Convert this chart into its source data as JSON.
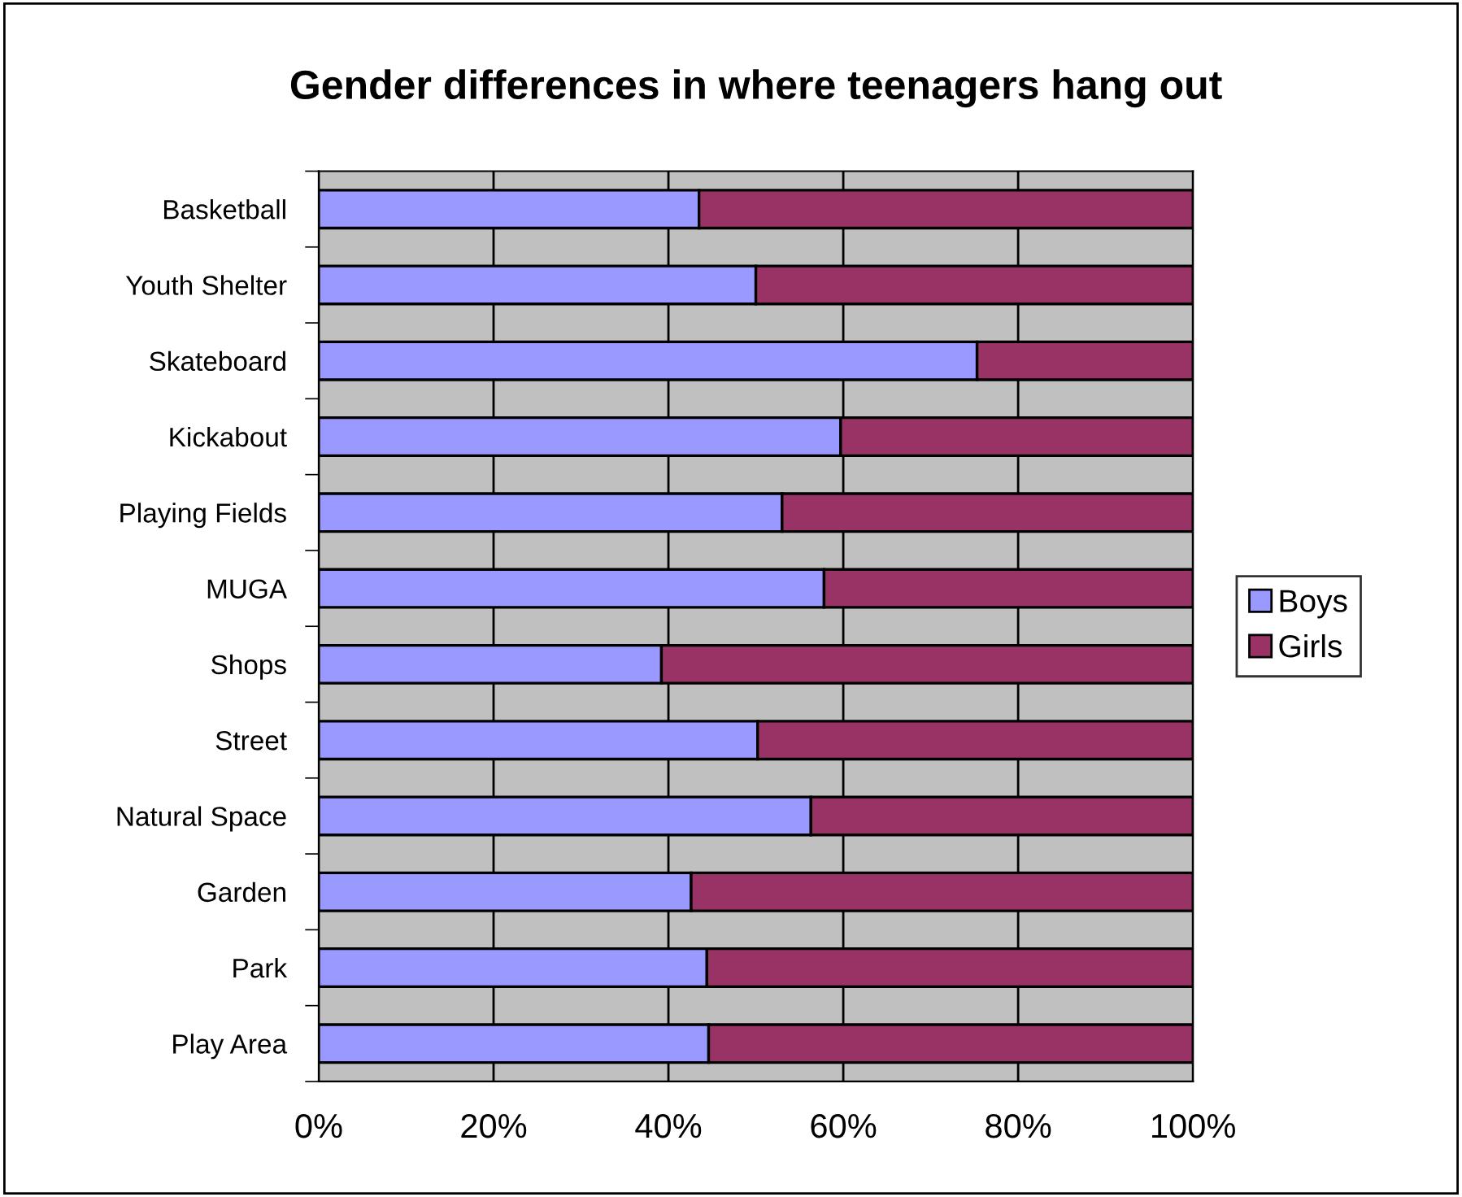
{
  "chart_data": {
    "type": "bar",
    "orientation": "horizontal",
    "stacked": true,
    "title": "Gender differences in where teenagers hang out",
    "categories": [
      "Basketball",
      "Youth Shelter",
      "Skateboard",
      "Kickabout",
      "Playing Fields",
      "MUGA",
      "Shops",
      "Street",
      "Natural Space",
      "Garden",
      "Park",
      "Play Area"
    ],
    "series": [
      {
        "name": "Boys",
        "color": "#9999ff",
        "values": [
          43.5,
          50,
          75.3,
          59.7,
          53,
          57.8,
          39.2,
          50.2,
          56.3,
          42.6,
          44.4,
          44.6
        ]
      },
      {
        "name": "Girls",
        "color": "#993366",
        "values": [
          56.5,
          50,
          24.7,
          40.3,
          47,
          42.2,
          60.8,
          49.8,
          43.7,
          57.4,
          55.6,
          55.4
        ]
      }
    ],
    "xlim": [
      0,
      100
    ],
    "xticks": [
      {
        "value": 0,
        "label": "0%"
      },
      {
        "value": 20,
        "label": "20%"
      },
      {
        "value": 40,
        "label": "40%"
      },
      {
        "value": 60,
        "label": "60%"
      },
      {
        "value": 80,
        "label": "80%"
      },
      {
        "value": 100,
        "label": "100%"
      }
    ],
    "grid": "x",
    "legend": "right"
  }
}
